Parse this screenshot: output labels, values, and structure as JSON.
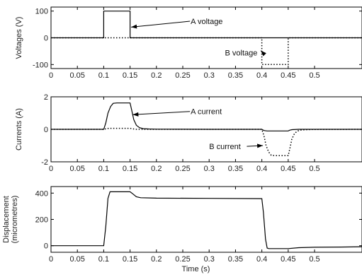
{
  "chart_data": [
    {
      "type": "line",
      "ylabel": "Voltages (V)",
      "xlim": [
        0,
        0.59
      ],
      "ylim": [
        -115,
        115
      ],
      "xticks": [
        0,
        0.05,
        0.1,
        0.15,
        0.2,
        0.25,
        0.3,
        0.35,
        0.4,
        0.45,
        0.5
      ],
      "xtick_labels": [
        "0",
        "0.05",
        "0.1",
        "0.15",
        "0.2",
        "0.25",
        "0.3",
        "0.35",
        "0.4",
        "0.45",
        "0.5"
      ],
      "yticks": [
        -100,
        0,
        100
      ],
      "ytick_labels": [
        "-100",
        "0",
        "100"
      ],
      "series": [
        {
          "name": "A voltage",
          "style": "solid",
          "x": [
            0,
            0.1,
            0.1,
            0.15,
            0.15,
            0.59
          ],
          "y": [
            0,
            0,
            100,
            100,
            0,
            0
          ]
        },
        {
          "name": "B voltage",
          "style": "dotted",
          "x": [
            0,
            0.4,
            0.4,
            0.45,
            0.45,
            0.59
          ],
          "y": [
            0,
            0,
            -100,
            -100,
            0,
            0
          ]
        }
      ],
      "annotations": [
        {
          "text": "A voltage",
          "x": 0.265,
          "y": 62,
          "arrow_to_x": 0.152,
          "arrow_to_y": 40
        },
        {
          "text": "B voltage",
          "x": 0.33,
          "y": -55,
          "arrow_to_x": 0.398,
          "arrow_to_y": -48
        }
      ]
    },
    {
      "type": "line",
      "ylabel": "Currents (A)",
      "xlim": [
        0,
        0.59
      ],
      "ylim": [
        -2,
        2
      ],
      "xticks": [
        0,
        0.05,
        0.1,
        0.15,
        0.2,
        0.25,
        0.3,
        0.35,
        0.4,
        0.45,
        0.5
      ],
      "xtick_labels": [
        "0",
        "0.05",
        "0.1",
        "0.15",
        "0.2",
        "0.25",
        "0.3",
        "0.35",
        "0.4",
        "0.45",
        "0.5"
      ],
      "yticks": [
        -2,
        0,
        2
      ],
      "ytick_labels": [
        "-2",
        "0",
        "2"
      ],
      "series": [
        {
          "name": "A current",
          "style": "solid",
          "x": [
            0,
            0.1,
            0.104,
            0.108,
            0.113,
            0.118,
            0.125,
            0.15,
            0.153,
            0.157,
            0.162,
            0.168,
            0.175,
            0.185,
            0.2,
            0.3,
            0.4,
            0.402,
            0.405,
            0.41,
            0.45,
            0.453,
            0.457,
            0.47,
            0.59
          ],
          "y": [
            0,
            0,
            0.4,
            1.0,
            1.4,
            1.6,
            1.62,
            1.62,
            1.2,
            0.6,
            0.25,
            0.1,
            0.04,
            0.02,
            0.01,
            0.0,
            0.0,
            -0.04,
            -0.08,
            -0.1,
            -0.1,
            -0.05,
            -0.02,
            0.0,
            0.0
          ]
        },
        {
          "name": "B current",
          "style": "dotted",
          "x": [
            0,
            0.1,
            0.105,
            0.11,
            0.15,
            0.155,
            0.16,
            0.4,
            0.404,
            0.408,
            0.413,
            0.418,
            0.425,
            0.45,
            0.453,
            0.457,
            0.462,
            0.468,
            0.475,
            0.485,
            0.5,
            0.59
          ],
          "y": [
            0,
            0,
            0.04,
            0.06,
            0.06,
            0.03,
            0.0,
            0,
            -0.4,
            -1.0,
            -1.4,
            -1.6,
            -1.62,
            -1.62,
            -1.2,
            -0.6,
            -0.25,
            -0.1,
            -0.04,
            -0.02,
            -0.01,
            0.0
          ]
        }
      ],
      "annotations": [
        {
          "text": "A current",
          "x": 0.265,
          "y": 1.1,
          "arrow_to_x": 0.155,
          "arrow_to_y": 0.9
        },
        {
          "text": "B current",
          "x": 0.3,
          "y": -1.05,
          "arrow_to_x": 0.402,
          "arrow_to_y": -1.0
        }
      ]
    },
    {
      "type": "line",
      "ylabel": "Displacement (micrometres)",
      "ylabel_lines": [
        "Displacement",
        "(micrometres)"
      ],
      "xlabel": "Time (s)",
      "xlim": [
        0,
        0.59
      ],
      "ylim": [
        -50,
        450
      ],
      "xticks": [
        0,
        0.05,
        0.1,
        0.15,
        0.2,
        0.25,
        0.3,
        0.35,
        0.4,
        0.45,
        0.5
      ],
      "xtick_labels": [
        "0",
        "0.05",
        "0.1",
        "0.15",
        "0.2",
        "0.25",
        "0.3",
        "0.35",
        "0.4",
        "0.45",
        "0.5"
      ],
      "yticks": [
        0,
        200,
        400
      ],
      "ytick_labels": [
        "0",
        "200",
        "400"
      ],
      "series": [
        {
          "name": "Displacement",
          "style": "solid",
          "x": [
            0,
            0.1,
            0.104,
            0.108,
            0.112,
            0.15,
            0.155,
            0.162,
            0.17,
            0.2,
            0.3,
            0.4,
            0.403,
            0.407,
            0.41,
            0.413,
            0.45,
            0.47,
            0.5,
            0.55,
            0.59
          ],
          "y": [
            0,
            0,
            150,
            360,
            410,
            410,
            395,
            372,
            365,
            362,
            360,
            358,
            250,
            50,
            -18,
            -22,
            -22,
            -15,
            -12,
            -10,
            -8
          ]
        }
      ],
      "annotations": []
    }
  ]
}
